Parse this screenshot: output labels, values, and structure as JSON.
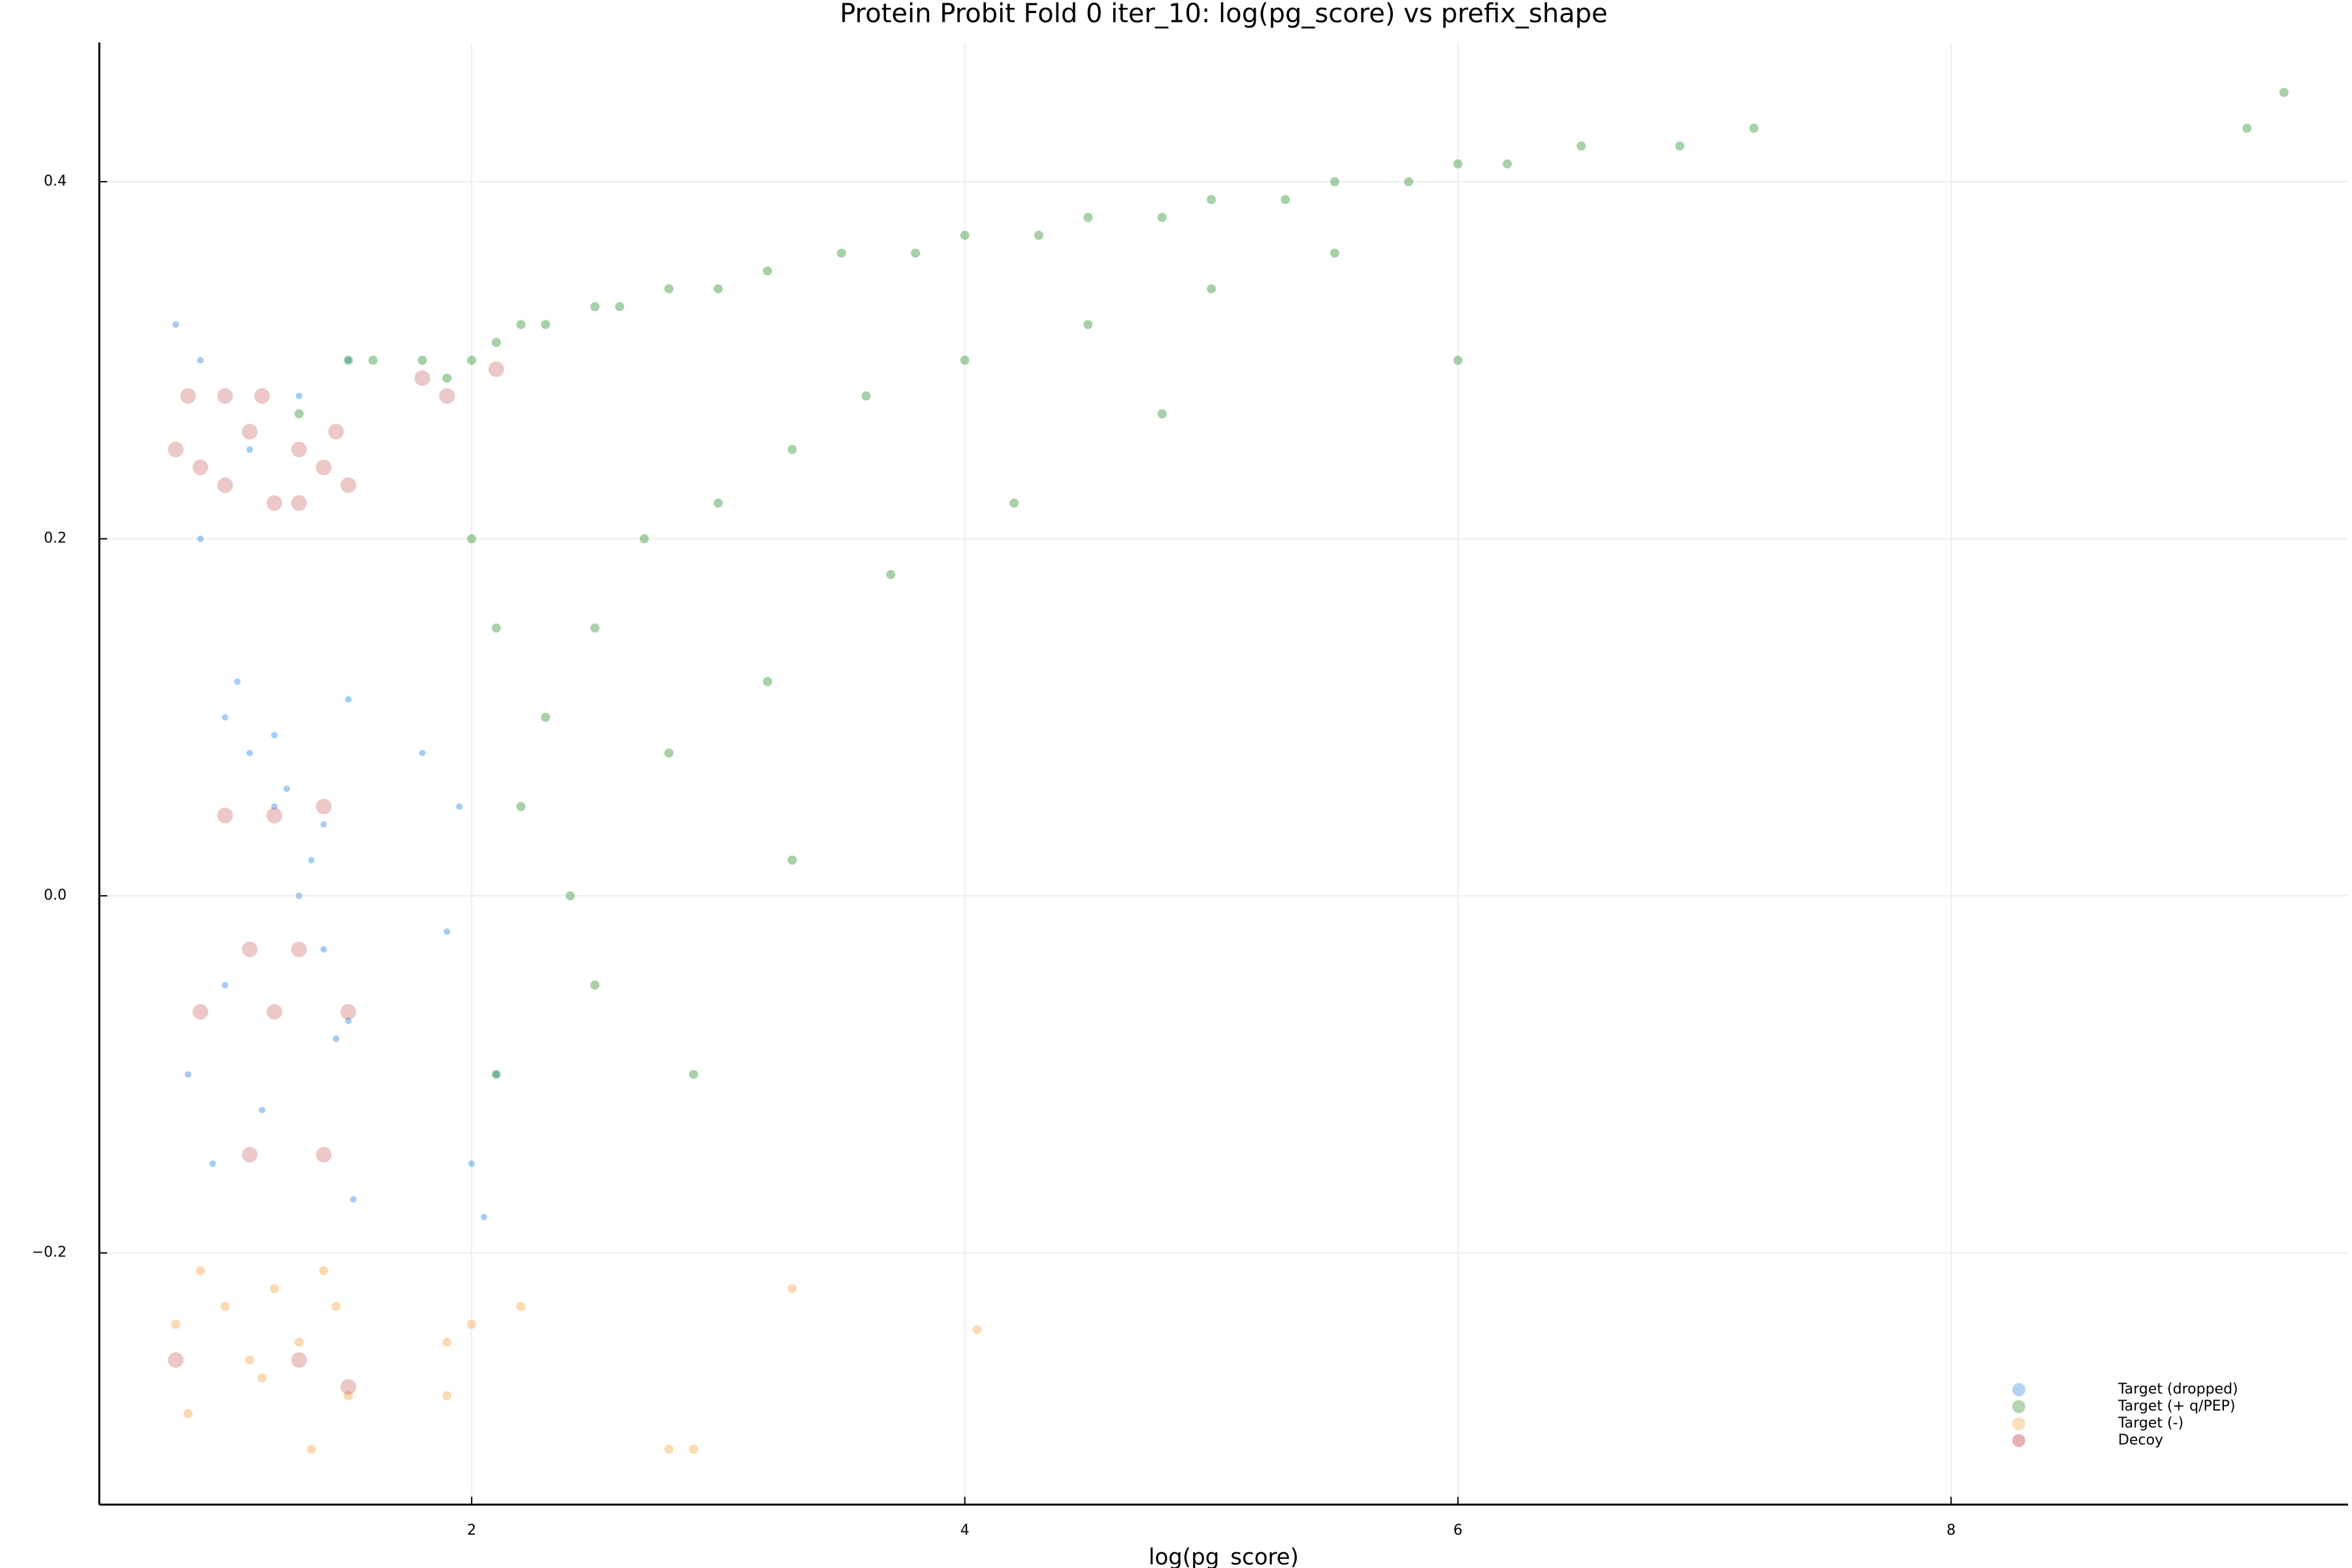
{
  "chart_data": {
    "type": "scatter",
    "title": "Protein Probit Fold 0 iter_10: log(pg_score) vs prefix_shape",
    "x_label": "log(pg_score)",
    "xlim": [
      0.49,
      9.61
    ],
    "ylim": [
      -0.341,
      0.478
    ],
    "xticks": [
      2,
      4,
      6,
      8
    ],
    "yticks": [
      {
        "value": -0.2,
        "label": "−0.2"
      },
      {
        "value": 0,
        "label": "0.0"
      },
      0.2,
      0.4
    ],
    "grid": true,
    "legend": "bottom right",
    "series": [
      {
        "name": "Target (dropped)",
        "color": "#1f82e0",
        "x": [
          0.8,
          0.9,
          1.0,
          1.1,
          1.2,
          1.3,
          1.4,
          1.5,
          0.85,
          0.95,
          1.05,
          1.15,
          1.25,
          1.35,
          1.45,
          1.52,
          0.9,
          1.1,
          1.3,
          1.5,
          1.0,
          1.2,
          1.4,
          1.5,
          1.8,
          1.9,
          2.0,
          2.1,
          1.95,
          2.05
        ],
        "values": [
          0.32,
          0.3,
          0.1,
          0.08,
          0.05,
          0.0,
          -0.03,
          -0.07,
          -0.1,
          -0.15,
          0.12,
          -0.12,
          0.06,
          0.02,
          -0.08,
          -0.17,
          0.2,
          0.25,
          0.28,
          0.11,
          -0.05,
          0.09,
          0.04,
          0.3,
          0.08,
          -0.02,
          -0.15,
          -0.1,
          0.05,
          -0.18
        ]
      },
      {
        "name": "Target (+ q/PEP)",
        "color": "#228b22",
        "x": [
          1.6,
          1.8,
          1.9,
          2.0,
          2.1,
          2.2,
          2.3,
          2.5,
          2.6,
          2.8,
          3.0,
          3.2,
          3.5,
          3.8,
          4.0,
          4.3,
          4.5,
          4.8,
          5.0,
          5.3,
          5.5,
          5.8,
          6.0,
          6.2,
          6.5,
          6.9,
          7.2,
          9.2,
          9.35,
          2.0,
          2.1,
          2.3,
          2.5,
          2.7,
          3.0,
          3.3,
          3.6,
          4.0,
          4.5,
          5.0,
          5.5,
          6.0,
          2.2,
          2.4,
          2.8,
          3.2,
          3.7,
          4.2,
          4.8,
          2.1,
          2.5,
          2.9,
          3.3,
          1.5,
          1.3
        ],
        "values": [
          0.3,
          0.3,
          0.29,
          0.3,
          0.31,
          0.32,
          0.32,
          0.33,
          0.33,
          0.34,
          0.34,
          0.35,
          0.36,
          0.36,
          0.37,
          0.37,
          0.38,
          0.38,
          0.39,
          0.39,
          0.4,
          0.4,
          0.41,
          0.41,
          0.42,
          0.42,
          0.43,
          0.43,
          0.45,
          0.2,
          0.15,
          0.1,
          0.15,
          0.2,
          0.22,
          0.25,
          0.28,
          0.3,
          0.32,
          0.34,
          0.36,
          0.3,
          0.05,
          0.0,
          0.08,
          0.12,
          0.18,
          0.22,
          0.27,
          -0.1,
          -0.05,
          -0.1,
          0.02,
          0.3,
          0.27
        ]
      },
      {
        "name": "Target (-)",
        "color": "#f4a340",
        "x": [
          0.8,
          0.9,
          1.0,
          1.1,
          1.2,
          1.3,
          1.4,
          1.5,
          0.85,
          1.15,
          1.35,
          1.45,
          1.9,
          2.0,
          2.2,
          3.3,
          4.05,
          2.8,
          2.9,
          1.9
        ],
        "values": [
          -0.24,
          -0.21,
          -0.23,
          -0.26,
          -0.22,
          -0.25,
          -0.21,
          -0.28,
          -0.29,
          -0.27,
          -0.31,
          -0.23,
          -0.25,
          -0.24,
          -0.23,
          -0.22,
          -0.243,
          -0.31,
          -0.31,
          -0.28
        ]
      },
      {
        "name": "Decoy",
        "color": "#b22222",
        "x": [
          0.8,
          0.9,
          1.0,
          1.1,
          1.2,
          1.3,
          1.4,
          1.5,
          0.85,
          1.0,
          1.15,
          1.3,
          1.45,
          1.0,
          1.2,
          1.4,
          1.1,
          1.3,
          0.9,
          1.2,
          1.5,
          1.1,
          1.4,
          0.8,
          1.3,
          1.5,
          1.9,
          2.1,
          1.8
        ],
        "values": [
          0.25,
          0.24,
          0.23,
          0.26,
          0.22,
          0.25,
          0.24,
          0.23,
          0.28,
          0.28,
          0.28,
          0.22,
          0.26,
          0.045,
          0.045,
          0.05,
          -0.03,
          -0.03,
          -0.065,
          -0.065,
          -0.065,
          -0.145,
          -0.145,
          -0.26,
          -0.26,
          -0.275,
          0.28,
          0.295,
          0.29
        ]
      }
    ]
  }
}
